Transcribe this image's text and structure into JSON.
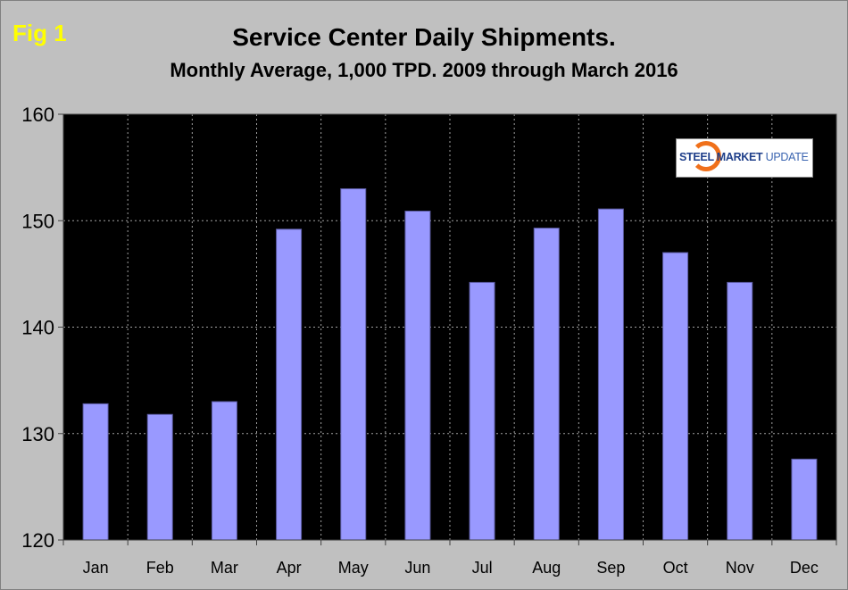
{
  "figure_label": "Fig 1",
  "logo_text": "STEEL MARKET UPDATE",
  "chart_data": {
    "type": "bar",
    "title": "Service Center Daily Shipments.",
    "subtitle": "Monthly Average, 1,000 TPD.  2009 through March 2016",
    "categories": [
      "Jan",
      "Feb",
      "Mar",
      "Apr",
      "May",
      "Jun",
      "Jul",
      "Aug",
      "Sep",
      "Oct",
      "Nov",
      "Dec"
    ],
    "values": [
      132.8,
      131.8,
      133.0,
      149.2,
      153.0,
      150.9,
      144.2,
      149.3,
      151.1,
      147.0,
      144.2,
      127.6
    ],
    "xlabel": "",
    "ylabel": "",
    "ylim": [
      120,
      160
    ],
    "yticks": [
      120,
      130,
      140,
      150,
      160
    ],
    "grid": true,
    "bar_color": "#9999ff",
    "plot_background": "#000000",
    "figure_background": "#c0c0c0",
    "figure_label_color": "#ffff00"
  }
}
